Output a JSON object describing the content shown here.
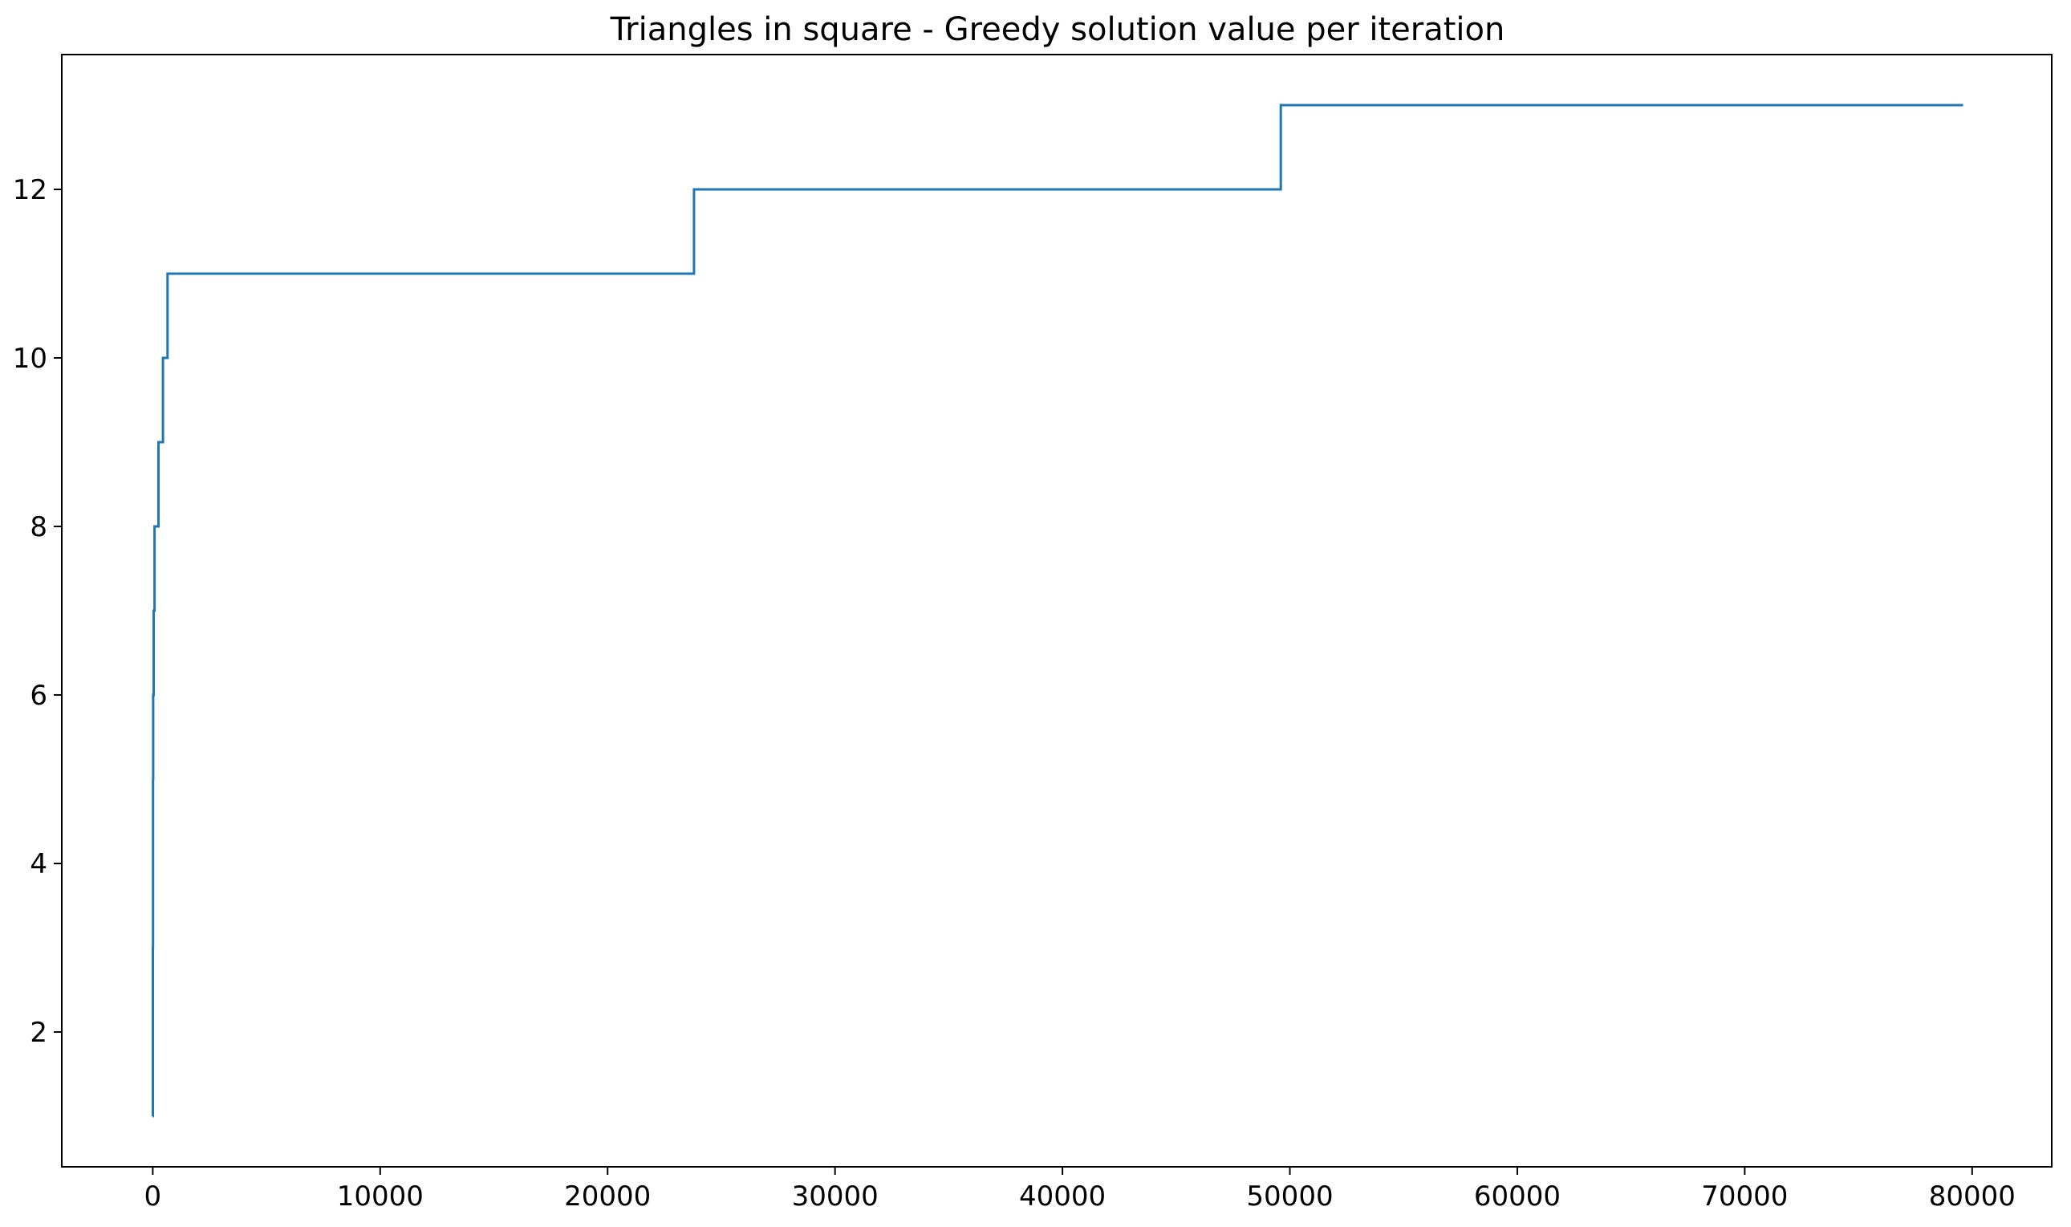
{
  "chart_data": {
    "type": "line",
    "title": "Triangles in square - Greedy solution value per iteration",
    "xlabel": "",
    "ylabel": "",
    "xlim": [
      -4000,
      83500
    ],
    "ylim": [
      0.4,
      13.6
    ],
    "xticks": [
      0,
      10000,
      20000,
      30000,
      40000,
      50000,
      60000,
      70000,
      80000
    ],
    "yticks": [
      2,
      4,
      6,
      8,
      10,
      12
    ],
    "grid": false,
    "legend": "none",
    "line_color": "#1f77b4",
    "series": [
      {
        "step": "post",
        "x": [
          0,
          5,
          10,
          20,
          40,
          60,
          80,
          250,
          450,
          650,
          23800,
          49600,
          79600
        ],
        "y": [
          1,
          3,
          5,
          6,
          7,
          7,
          8,
          9,
          10,
          11,
          12,
          13,
          13
        ]
      }
    ]
  }
}
